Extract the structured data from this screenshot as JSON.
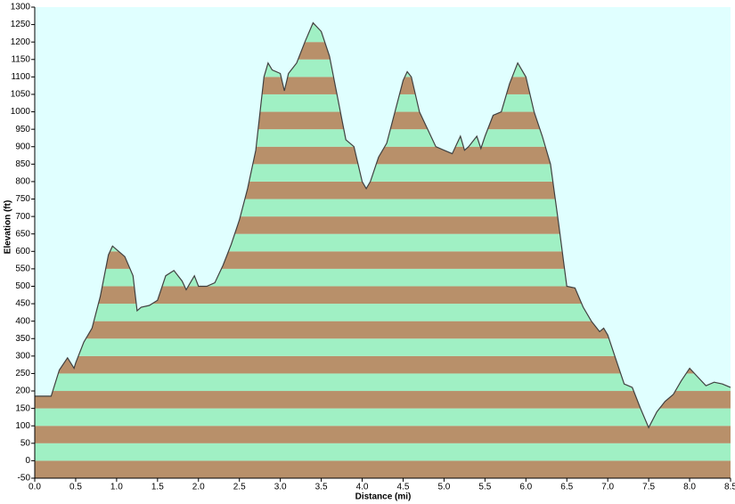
{
  "chart_data": {
    "type": "area",
    "x_label": "Distance   (mi)",
    "y_label": "Elevation (ft)",
    "background": "#e0ffff",
    "band_colors": [
      "#b8906a",
      "#a0f0c4"
    ],
    "x": [
      0.0,
      0.1,
      0.2,
      0.3,
      0.4,
      0.48,
      0.5,
      0.6,
      0.7,
      0.8,
      0.9,
      0.95,
      1.0,
      1.1,
      1.2,
      1.25,
      1.3,
      1.4,
      1.5,
      1.6,
      1.7,
      1.8,
      1.85,
      1.9,
      1.95,
      2.0,
      2.1,
      2.2,
      2.3,
      2.4,
      2.5,
      2.6,
      2.7,
      2.8,
      2.85,
      2.9,
      3.0,
      3.05,
      3.1,
      3.2,
      3.3,
      3.4,
      3.5,
      3.6,
      3.7,
      3.8,
      3.9,
      4.0,
      4.05,
      4.1,
      4.2,
      4.3,
      4.4,
      4.5,
      4.55,
      4.6,
      4.7,
      4.8,
      4.9,
      5.0,
      5.1,
      5.2,
      5.25,
      5.3,
      5.4,
      5.45,
      5.5,
      5.6,
      5.7,
      5.8,
      5.9,
      6.0,
      6.1,
      6.2,
      6.3,
      6.4,
      6.5,
      6.6,
      6.7,
      6.8,
      6.9,
      6.95,
      7.0,
      7.1,
      7.2,
      7.3,
      7.4,
      7.5,
      7.6,
      7.7,
      7.8,
      7.9,
      8.0,
      8.1,
      8.2,
      8.3,
      8.4,
      8.5
    ],
    "series": [
      {
        "color": "#404040",
        "values": [
          185,
          185,
          185,
          260,
          295,
          265,
          280,
          340,
          380,
          470,
          590,
          615,
          605,
          585,
          530,
          430,
          440,
          445,
          460,
          530,
          545,
          515,
          490,
          510,
          530,
          500,
          500,
          510,
          560,
          620,
          690,
          780,
          890,
          1100,
          1140,
          1120,
          1110,
          1060,
          1110,
          1140,
          1200,
          1255,
          1230,
          1160,
          1040,
          920,
          900,
          800,
          780,
          800,
          870,
          910,
          1000,
          1090,
          1115,
          1100,
          1000,
          950,
          900,
          890,
          880,
          930,
          890,
          900,
          930,
          895,
          930,
          990,
          1000,
          1080,
          1140,
          1100,
          1000,
          930,
          850,
          680,
          500,
          495,
          440,
          400,
          370,
          380,
          360,
          290,
          220,
          210,
          150,
          95,
          140,
          170,
          190,
          230,
          265,
          240,
          215,
          225,
          220,
          210
        ]
      }
    ],
    "xlim": [
      0,
      8.5
    ],
    "xticks": [
      {
        "value": 0,
        "label": "0.0"
      },
      0.5,
      {
        "value": 1,
        "label": "1.0"
      },
      1.5,
      {
        "value": 2,
        "label": "2.0"
      },
      2.5,
      {
        "value": 3,
        "label": "3.0"
      },
      3.5,
      {
        "value": 4,
        "label": "4.0"
      },
      4.5,
      {
        "value": 5,
        "label": "5.0"
      },
      5.5,
      {
        "value": 6,
        "label": "6.0"
      },
      6.5,
      {
        "value": 7,
        "label": "7.0"
      },
      7.5,
      {
        "value": 8,
        "label": "8.0"
      },
      8.5
    ],
    "ylim": [
      -50,
      1300
    ],
    "yticks": [
      -50,
      0,
      50,
      100,
      150,
      200,
      250,
      300,
      350,
      400,
      450,
      500,
      550,
      600,
      650,
      700,
      750,
      800,
      850,
      900,
      950,
      1000,
      1050,
      1100,
      1150,
      1200,
      1250,
      1300
    ]
  }
}
